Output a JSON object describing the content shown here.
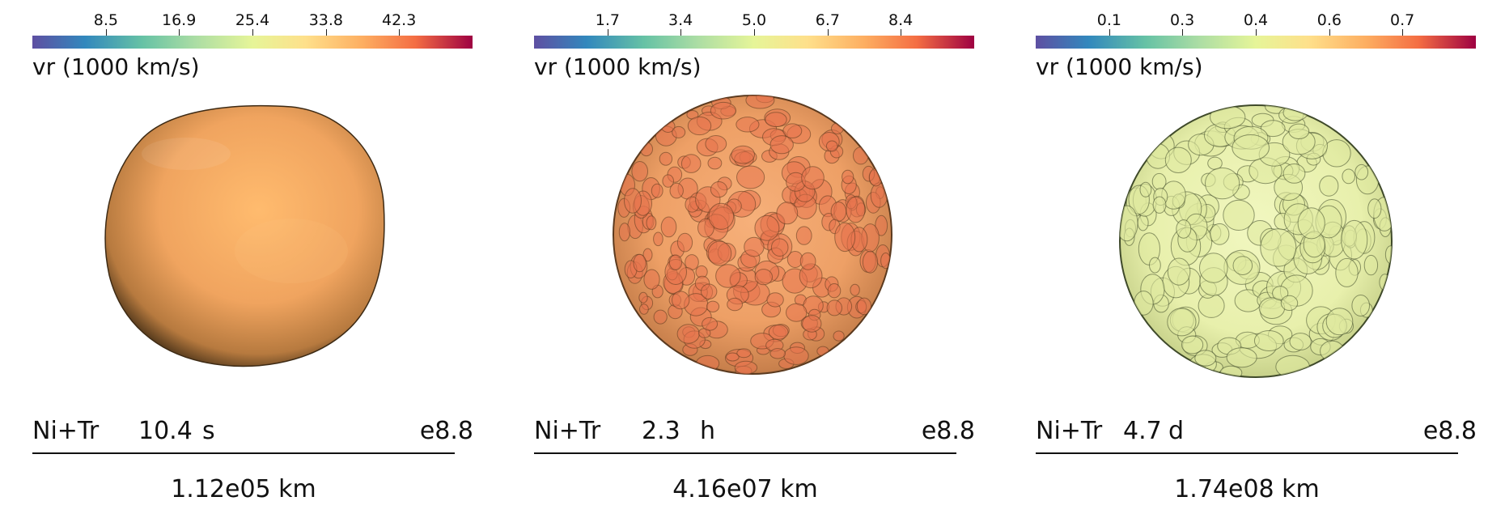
{
  "panels": [
    {
      "colorbar": {
        "title": "vr (1000 km/s)",
        "ticks": [
          "8.5",
          "16.9",
          "25.4",
          "33.8",
          "42.3"
        ],
        "tick_fracs": [
          0.167,
          0.333,
          0.5,
          0.667,
          0.833
        ]
      },
      "label": "Ni+Tr",
      "time_value": "10.4",
      "time_unit": "s",
      "energy": "e8.8",
      "scale": "1.12e05 km",
      "sphere": {
        "style": "smooth",
        "base_color": "#f6ad64",
        "edge_color": "#3d2a14"
      }
    },
    {
      "colorbar": {
        "title": "vr (1000 km/s)",
        "ticks": [
          "1.7",
          "3.4",
          "5.0",
          "6.7",
          "8.4"
        ],
        "tick_fracs": [
          0.167,
          0.333,
          0.5,
          0.667,
          0.833
        ]
      },
      "label": "Ni+Tr",
      "time_value": "2.3",
      "time_unit": "h",
      "energy": "e8.8",
      "scale": "4.16e07 km",
      "sphere": {
        "style": "bubbly",
        "base_color": "#f2a46b",
        "edge_color": "#5b3a1f",
        "blob_color": "#e8744e"
      }
    },
    {
      "colorbar": {
        "title": "vr (1000 km/s)",
        "ticks": [
          "0.1",
          "0.3",
          "0.4",
          "0.6",
          "0.7"
        ],
        "tick_fracs": [
          0.167,
          0.333,
          0.5,
          0.667,
          0.833
        ]
      },
      "label": "Ni+Tr",
      "time_value": "4.7",
      "time_unit": "d",
      "energy": "e8.8",
      "scale": "1.74e08 km",
      "sphere": {
        "style": "lumpy",
        "base_color": "#ecf3b4",
        "edge_color": "#3f4a2a",
        "blob_color": "#dfeaa0"
      }
    }
  ]
}
